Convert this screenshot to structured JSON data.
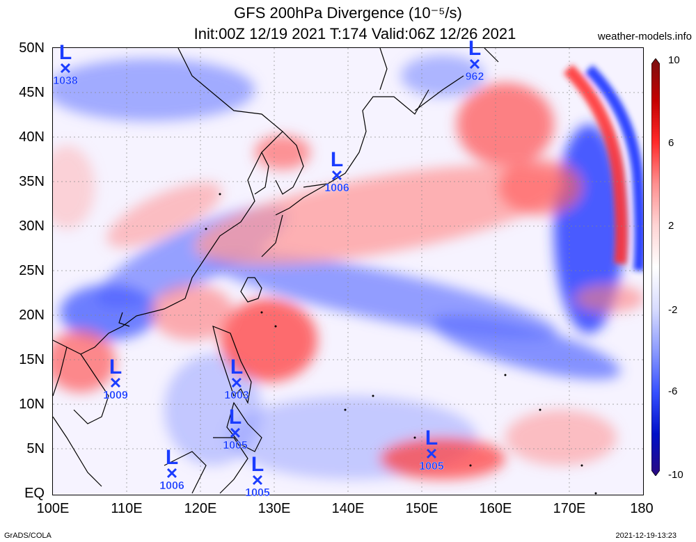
{
  "title": {
    "line1": "GFS 200hPa Divergence (10⁻⁵/s)",
    "line2": "Init:00Z 12/19 2021 T:174 Valid:06Z 12/26 2021"
  },
  "site": "weather-models.info",
  "y_axis": [
    "50N",
    "45N",
    "40N",
    "35N",
    "30N",
    "25N",
    "20N",
    "15N",
    "10N",
    "5N",
    "EQ"
  ],
  "x_axis": [
    "100E",
    "110E",
    "120E",
    "130E",
    "140E",
    "150E",
    "160E",
    "170E",
    "180"
  ],
  "colorbar": {
    "labels": [
      "10",
      "6",
      "2",
      "-2",
      "-6",
      "-10"
    ],
    "colors": [
      "#7a1010",
      "#c40000",
      "#ff2a2a",
      "#ff8f8f",
      "#ffd4d4",
      "#ffffff",
      "#d8dcff",
      "#8c9bff",
      "#3650ff",
      "#0010c8",
      "#2a0a80"
    ]
  },
  "lows": [
    {
      "label": "L",
      "pressure": "1038"
    },
    {
      "label": "L",
      "pressure": "962"
    },
    {
      "label": "L",
      "pressure": "1006"
    },
    {
      "label": "L",
      "pressure": "1009"
    },
    {
      "label": "L",
      "pressure": "1003"
    },
    {
      "label": "L",
      "pressure": "1005"
    },
    {
      "label": "L",
      "pressure": "1006"
    },
    {
      "label": "L",
      "pressure": "1005"
    },
    {
      "label": "L",
      "pressure": "1005"
    }
  ],
  "footer": {
    "left": "GrADS/COLA",
    "right": "2021-12-19-13:23"
  }
}
